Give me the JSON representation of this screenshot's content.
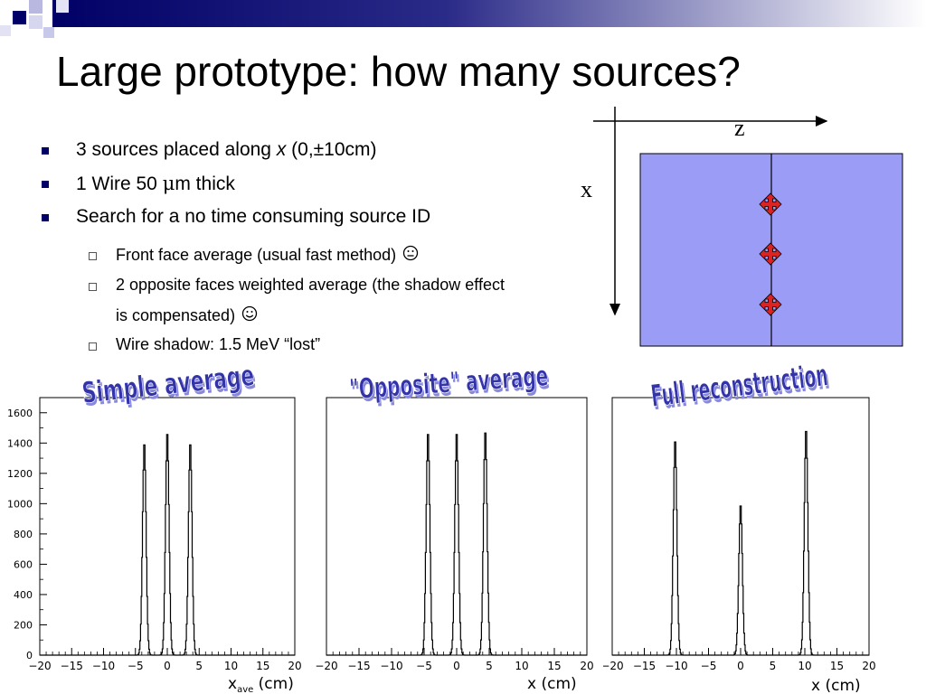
{
  "slide": {
    "title": "Large prototype: how many sources?",
    "bullets": [
      {
        "parts": [
          "3 sources placed along ",
          "x",
          " (0,±10cm)"
        ]
      },
      {
        "parts": [
          "1 Wire 50 ",
          "μ",
          "m thick"
        ]
      },
      {
        "parts": [
          "Search for a no time consuming source ID"
        ]
      }
    ],
    "subbullets": [
      {
        "text": "Front face average (usual fast method) ",
        "icon": "neutral-face-icon"
      },
      {
        "text": "2 opposite faces weighted average (the shadow effect",
        "text2": "is compensated) ",
        "icon": "smiley-face-icon"
      },
      {
        "text": "Wire shadow: 1.5 MeV “lost”"
      }
    ]
  },
  "diagram": {
    "axis_z": "z",
    "axis_x": "x",
    "colors": {
      "detector": "#9a9cf5",
      "source": "#dd2222"
    }
  },
  "colors": {
    "bullet": "#000066",
    "banner_text": "#3333aa",
    "banner_shadow": "#8888dd"
  },
  "chart_data": [
    {
      "type": "line",
      "title": "Simple average",
      "xlabel": "x",
      "xlabel_sub": "ave",
      "xlabel_unit": " (cm)",
      "xlim": [
        -20,
        20
      ],
      "ylim": [
        0,
        1700
      ],
      "xticks": [
        -20,
        -15,
        -10,
        -5,
        0,
        5,
        10,
        15,
        20
      ],
      "yticks": [
        0,
        200,
        400,
        600,
        800,
        1000,
        1200,
        1400,
        1600
      ],
      "peaks": [
        {
          "x": -3.6,
          "height": 1410
        },
        {
          "x": 0.0,
          "height": 1480
        },
        {
          "x": 3.6,
          "height": 1410
        }
      ]
    },
    {
      "type": "line",
      "title": "\"Opposite\" average",
      "xlabel": "x (cm)",
      "xlim": [
        -20,
        20
      ],
      "ylim": [
        0,
        1700
      ],
      "xticks": [
        -20,
        -15,
        -10,
        -5,
        0,
        5,
        10,
        15,
        20
      ],
      "peaks": [
        {
          "x": -4.4,
          "height": 1480
        },
        {
          "x": 0.0,
          "height": 1480
        },
        {
          "x": 4.4,
          "height": 1490
        }
      ]
    },
    {
      "type": "line",
      "title": "Full reconstruction",
      "xlabel": "x (cm)",
      "xlim": [
        -20,
        20
      ],
      "ylim": [
        0,
        1700
      ],
      "xticks": [
        -20,
        -15,
        -10,
        -5,
        0,
        5,
        10,
        15,
        20
      ],
      "peaks": [
        {
          "x": -10.2,
          "height": 1430
        },
        {
          "x": 0.0,
          "height": 1000
        },
        {
          "x": 10.2,
          "height": 1500
        }
      ]
    }
  ]
}
